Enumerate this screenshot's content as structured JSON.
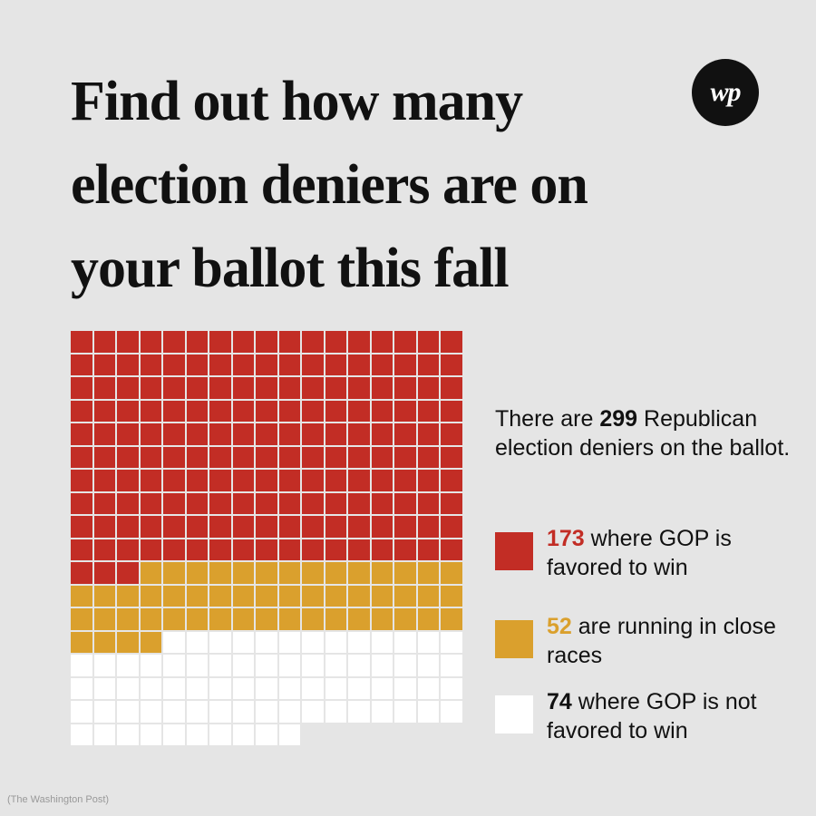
{
  "headline": {
    "line1": "Find out how many",
    "line2": "election deniers are on",
    "line3": "your ballot this fall"
  },
  "logo": {
    "text": "wp",
    "icon": "washington-post-logo"
  },
  "colors": {
    "background": "#e5e5e5",
    "red": "#c22d25",
    "orange": "#daa02d",
    "white": "#ffffff"
  },
  "legend": {
    "intro_before": "There are ",
    "intro_total": "299",
    "intro_after": " Republican election deniers on the ballot.",
    "items": [
      {
        "value": "173",
        "label": " where GOP is favored to win"
      },
      {
        "value": "52",
        "label": " are running in close races"
      },
      {
        "value": "74",
        "label": " where GOP is not favored to win"
      }
    ]
  },
  "chart_data": {
    "type": "waffle",
    "total": 299,
    "columns": 17,
    "fill_order": "row-major, top-left",
    "categories": [
      "where GOP is favored to win",
      "are running in close races",
      "where GOP is not favored to win"
    ],
    "values": [
      173,
      52,
      74
    ],
    "colors": [
      "#c22d25",
      "#daa02d",
      "#ffffff"
    ]
  },
  "credit": "(The Washington Post)"
}
